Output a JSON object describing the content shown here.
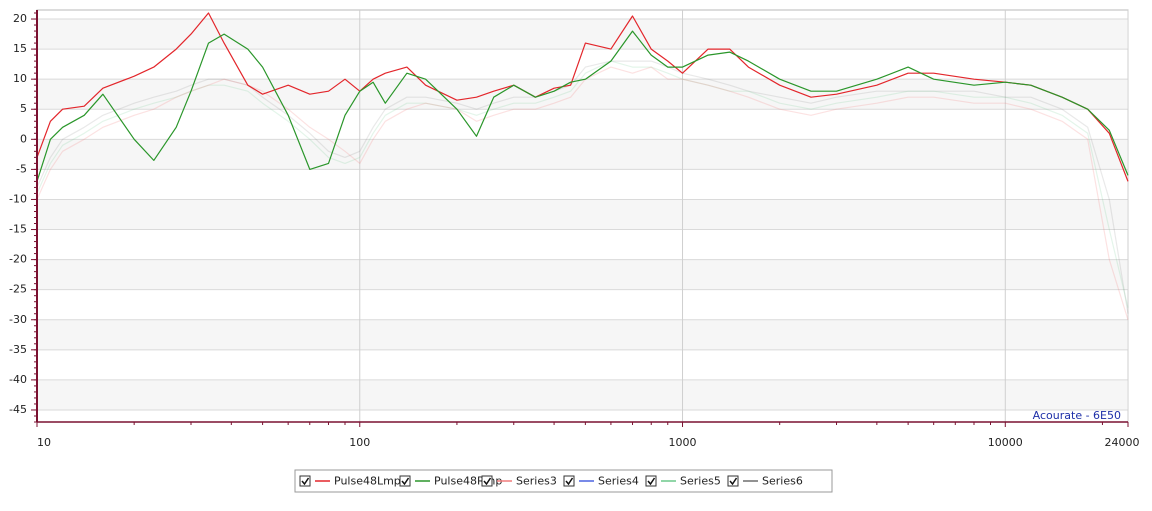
{
  "chart_data": {
    "type": "line",
    "x": [
      10,
      11,
      12,
      14,
      16,
      20,
      23,
      27,
      30,
      34,
      38,
      45,
      50,
      60,
      70,
      80,
      90,
      100,
      110,
      120,
      140,
      160,
      200,
      230,
      260,
      300,
      350,
      400,
      450,
      500,
      600,
      700,
      800,
      900,
      1000,
      1200,
      1400,
      1600,
      2000,
      2500,
      3000,
      4000,
      5000,
      6000,
      8000,
      10000,
      12000,
      15000,
      18000,
      21000,
      24000
    ],
    "series": [
      {
        "name": "Pulse48Lmp",
        "color": "#e3262b",
        "opacity": 1,
        "values": [
          -3,
          3,
          5,
          5.5,
          8.5,
          10.5,
          12,
          15,
          17.5,
          21,
          16,
          9,
          7.5,
          9,
          7.5,
          8,
          10,
          8,
          10,
          11,
          12,
          9,
          6.5,
          7,
          8,
          9,
          7,
          8.5,
          9,
          16,
          15,
          20.5,
          15,
          13,
          11,
          15,
          15,
          12,
          9,
          7,
          7.5,
          9,
          11,
          11,
          10,
          9.5,
          9,
          7,
          5,
          1,
          -7
        ]
      },
      {
        "name": "Pulse48Rmp",
        "color": "#2a962a",
        "opacity": 1,
        "values": [
          -7,
          0,
          2,
          4,
          7.5,
          0,
          -3.5,
          2,
          8,
          16,
          17.5,
          15,
          12,
          4,
          -5,
          -4,
          4,
          8,
          9.5,
          6,
          11,
          10,
          5,
          0.5,
          7,
          9,
          7,
          8,
          9.5,
          10,
          13,
          18,
          14,
          12,
          12,
          14,
          14.5,
          13,
          10,
          8,
          8,
          10,
          12,
          10,
          9,
          9.5,
          9,
          7,
          5,
          1.5,
          -6
        ]
      },
      {
        "name": "Series3",
        "color": "#f07a7a",
        "opacity": 0.22,
        "values": [
          -10,
          -5,
          -2,
          0,
          2,
          4,
          5,
          7,
          8,
          9,
          10,
          9,
          8,
          5,
          2,
          0,
          -2,
          -4,
          0,
          3,
          5,
          6,
          5,
          3,
          4,
          5,
          5,
          6,
          7,
          10,
          12,
          11,
          12,
          10,
          10,
          9,
          8,
          7,
          5,
          4,
          5,
          6,
          7,
          7,
          6,
          6,
          5,
          3,
          0,
          -20,
          -30
        ]
      },
      {
        "name": "Series4",
        "color": "#4a63e0",
        "opacity": 1,
        "values": [
          null,
          null,
          null,
          null,
          null,
          null,
          null,
          null,
          null,
          null,
          null,
          null,
          null,
          null,
          null,
          null,
          null,
          null,
          null,
          null,
          null,
          null,
          null,
          null,
          null,
          null,
          null,
          null,
          null,
          null,
          null,
          null,
          null,
          null,
          null,
          null,
          null,
          null,
          null,
          null,
          null,
          null,
          null,
          null,
          null,
          null,
          null,
          null,
          null,
          null,
          null
        ]
      },
      {
        "name": "Series5",
        "color": "#6cc98a",
        "opacity": 0.18,
        "values": [
          -9,
          -4,
          -1,
          1,
          3,
          5,
          6,
          7,
          8,
          9,
          9,
          8,
          6,
          3,
          0,
          -3,
          -4,
          -3,
          1,
          4,
          6,
          6,
          5,
          4,
          5,
          6,
          6,
          7,
          8,
          11,
          13,
          12,
          12,
          11,
          10,
          9,
          8,
          8,
          6,
          5,
          6,
          7,
          8,
          8,
          7,
          7,
          6,
          4,
          1,
          -15,
          -28
        ]
      },
      {
        "name": "Series6",
        "color": "#6e6e6e",
        "opacity": 0.15,
        "values": [
          -8,
          -3,
          0,
          2,
          4,
          6,
          7,
          8,
          9,
          10,
          10,
          9,
          7,
          4,
          1,
          -2,
          -3,
          -2,
          2,
          5,
          7,
          7,
          6,
          5,
          6,
          7,
          7,
          8,
          9,
          12,
          13,
          13,
          13,
          12,
          11,
          10,
          9,
          8,
          7,
          6,
          7,
          8,
          8,
          8,
          8,
          7,
          7,
          5,
          2,
          -10,
          -29
        ]
      }
    ],
    "xlog": true,
    "xlim": [
      10,
      24000
    ],
    "xticks": [
      10,
      100,
      1000,
      10000,
      24000
    ],
    "ylim": [
      -47,
      21.5
    ],
    "yticks": [
      -45,
      -40,
      -35,
      -30,
      -25,
      -20,
      -15,
      -10,
      -5,
      0,
      5,
      10,
      15,
      20
    ],
    "grid": true,
    "legend": "bottom",
    "annotation": "Acourate - 6E50"
  }
}
